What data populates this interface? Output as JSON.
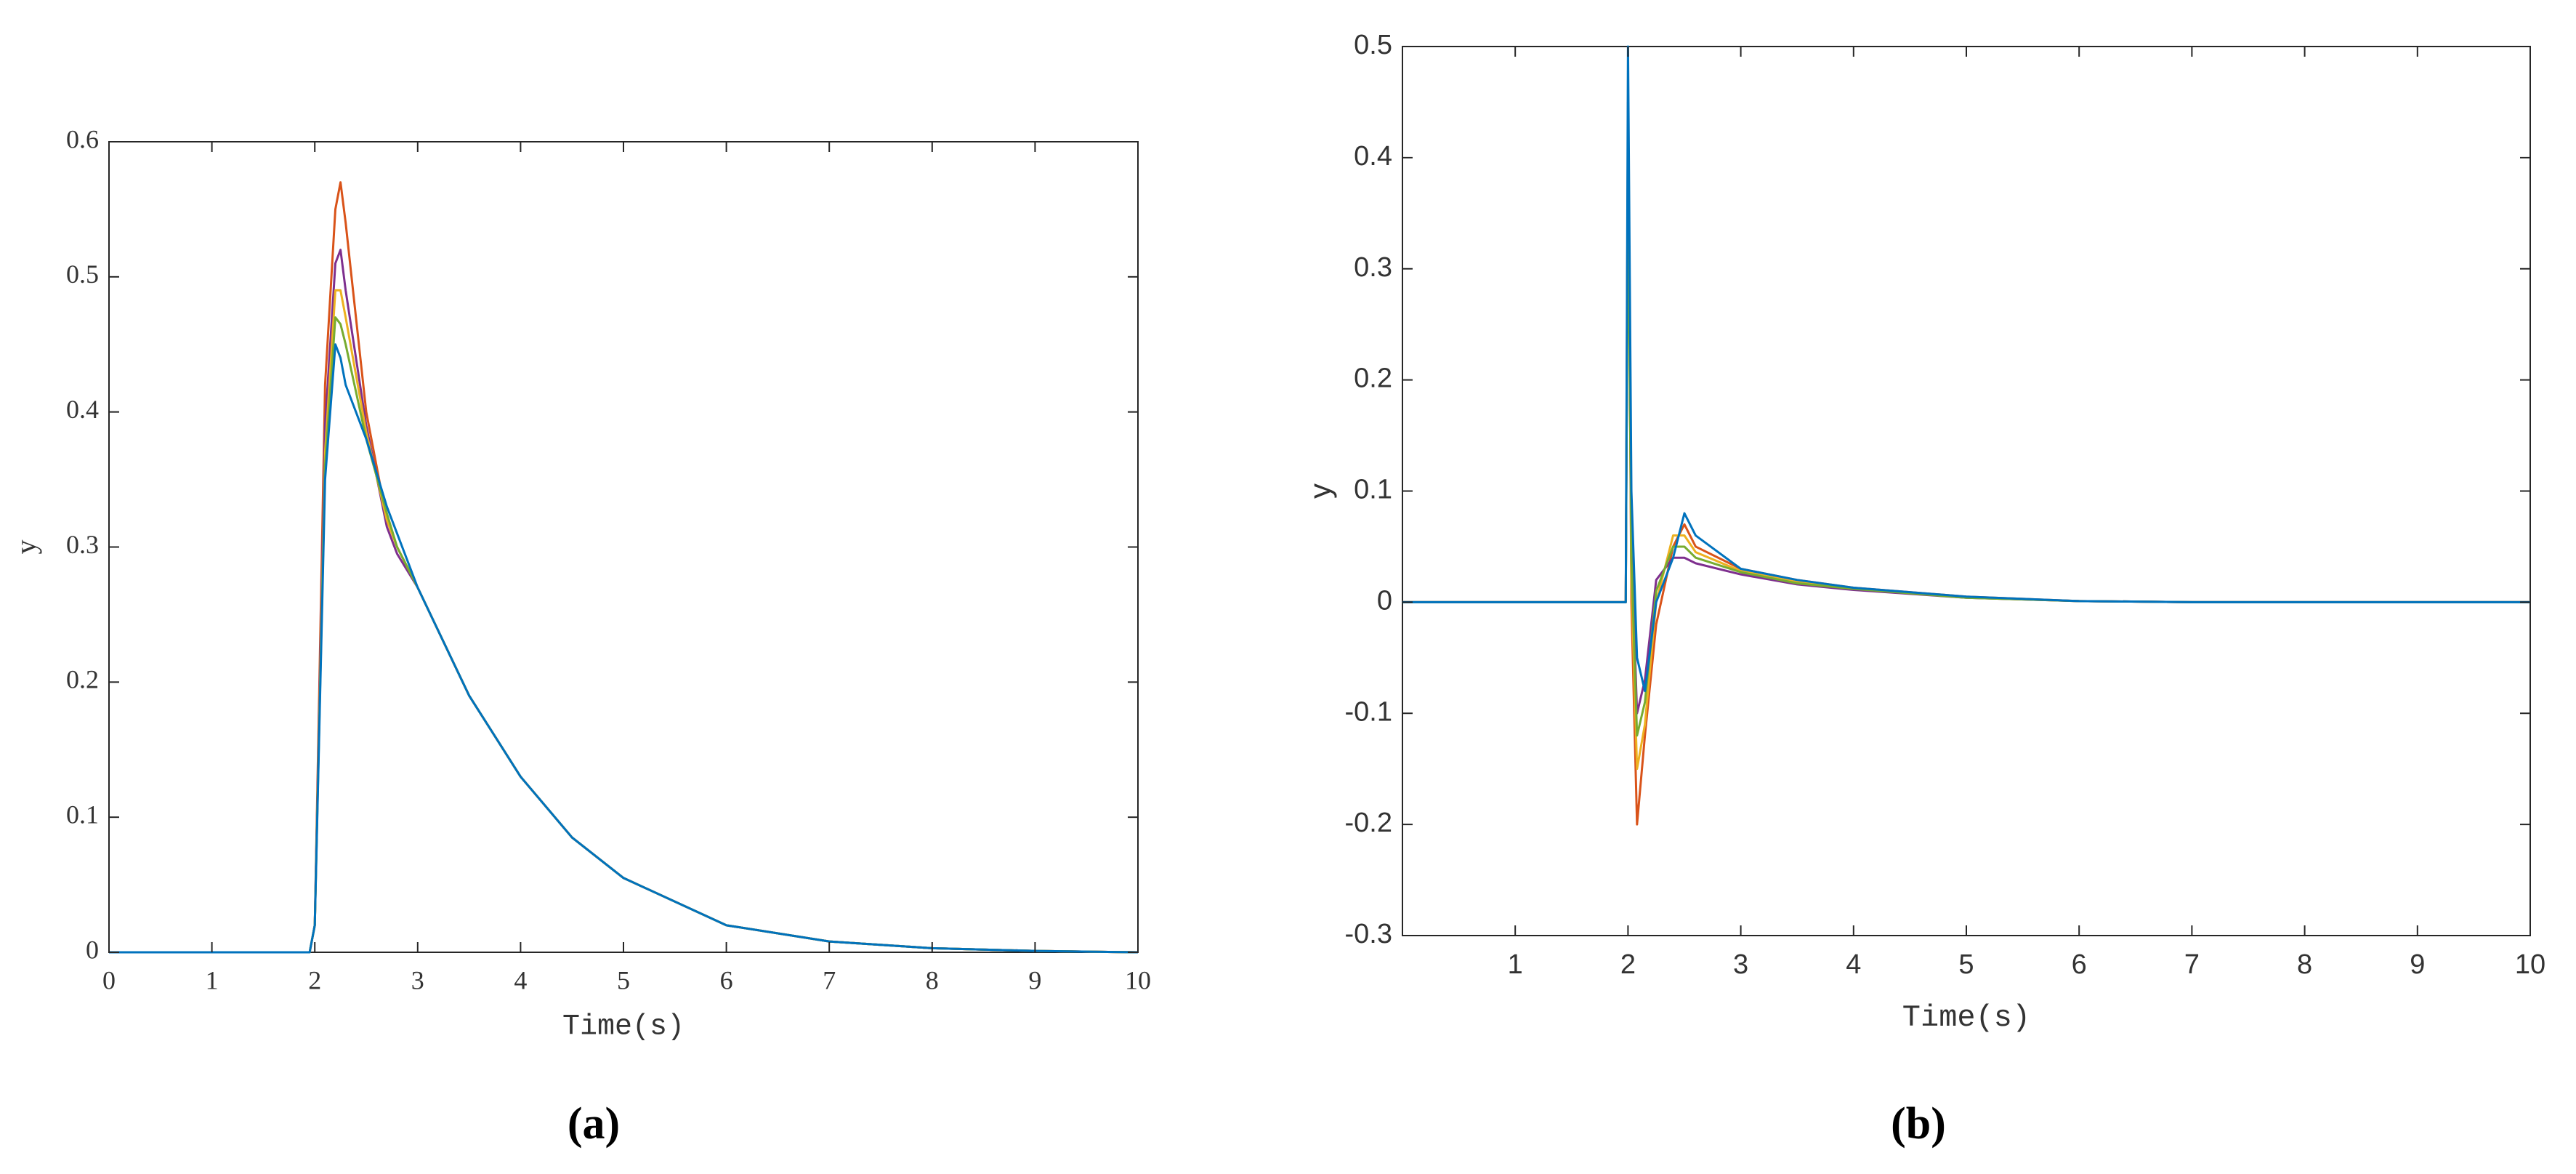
{
  "chart_data": [
    {
      "type": "line",
      "caption": "(a)",
      "xlabel": "Time(s)",
      "ylabel": "y",
      "xlim": [
        0,
        10
      ],
      "xticks": [
        0,
        1,
        2,
        3,
        4,
        5,
        6,
        7,
        8,
        9,
        10
      ],
      "ylim": [
        0,
        0.6
      ],
      "yticks": [
        0,
        0.1,
        0.2,
        0.3,
        0.4,
        0.5,
        0.6
      ],
      "x": [
        0,
        1,
        1.95,
        2.0,
        2.1,
        2.2,
        2.25,
        2.3,
        2.5,
        2.7,
        2.8,
        3,
        3.5,
        4,
        4.5,
        5,
        6,
        7,
        8,
        9,
        10
      ],
      "series": [
        {
          "color": "#D95319",
          "values": [
            0,
            0,
            0,
            0.02,
            0.42,
            0.55,
            0.57,
            0.54,
            0.4,
            0.32,
            0.3,
            0.27,
            0.19,
            0.13,
            0.085,
            0.055,
            0.02,
            0.008,
            0.003,
            0.001,
            0
          ]
        },
        {
          "color": "#7E2F8E",
          "values": [
            0,
            0,
            0,
            0.02,
            0.39,
            0.51,
            0.52,
            0.49,
            0.39,
            0.315,
            0.295,
            0.27,
            0.19,
            0.13,
            0.085,
            0.055,
            0.02,
            0.008,
            0.003,
            0.001,
            0
          ]
        },
        {
          "color": "#EDB120",
          "values": [
            0,
            0,
            0,
            0.02,
            0.37,
            0.49,
            0.49,
            0.47,
            0.385,
            0.32,
            0.3,
            0.27,
            0.19,
            0.13,
            0.085,
            0.055,
            0.02,
            0.008,
            0.003,
            0.001,
            0
          ]
        },
        {
          "color": "#77AC30",
          "values": [
            0,
            0,
            0,
            0.02,
            0.36,
            0.47,
            0.465,
            0.45,
            0.38,
            0.325,
            0.3,
            0.27,
            0.19,
            0.13,
            0.085,
            0.055,
            0.02,
            0.008,
            0.003,
            0.001,
            0
          ]
        },
        {
          "color": "#0072BD",
          "values": [
            0,
            0,
            0,
            0.02,
            0.35,
            0.45,
            0.44,
            0.42,
            0.38,
            0.33,
            0.31,
            0.27,
            0.19,
            0.13,
            0.085,
            0.055,
            0.02,
            0.008,
            0.003,
            0.001,
            0
          ]
        }
      ]
    },
    {
      "type": "line",
      "caption": "(b)",
      "xlabel": "Time(s)",
      "ylabel": "y",
      "xlim": [
        0,
        10
      ],
      "xticks": [
        1,
        2,
        3,
        4,
        5,
        6,
        7,
        8,
        9,
        10
      ],
      "ylim": [
        -0.3,
        0.5
      ],
      "yticks": [
        -0.3,
        -0.2,
        -0.1,
        0,
        0.1,
        0.2,
        0.3,
        0.4,
        0.5
      ],
      "x": [
        0,
        1.98,
        2.0,
        2.03,
        2.08,
        2.15,
        2.25,
        2.4,
        2.5,
        2.6,
        3,
        3.5,
        4,
        5,
        6,
        7,
        10
      ],
      "series": [
        {
          "color": "#D95319",
          "values": [
            0,
            0,
            0.45,
            0.0,
            -0.2,
            -0.12,
            -0.02,
            0.05,
            0.07,
            0.05,
            0.03,
            0.02,
            0.013,
            0.005,
            0.001,
            0,
            0
          ]
        },
        {
          "color": "#EDB120",
          "values": [
            0,
            0,
            0.42,
            0.02,
            -0.15,
            -0.11,
            0.0,
            0.06,
            0.06,
            0.045,
            0.028,
            0.018,
            0.012,
            0.004,
            0.001,
            0,
            0
          ]
        },
        {
          "color": "#7E2F8E",
          "values": [
            0,
            0,
            0.4,
            0.05,
            -0.1,
            -0.07,
            0.02,
            0.04,
            0.04,
            0.035,
            0.025,
            0.016,
            0.011,
            0.004,
            0.001,
            0,
            0
          ]
        },
        {
          "color": "#77AC30",
          "values": [
            0,
            0,
            0.38,
            0.04,
            -0.12,
            -0.09,
            0.01,
            0.05,
            0.05,
            0.04,
            0.027,
            0.017,
            0.012,
            0.004,
            0.001,
            0,
            0
          ]
        },
        {
          "color": "#0072BD",
          "values": [
            0,
            0,
            0.5,
            0.1,
            -0.05,
            -0.08,
            0.0,
            0.04,
            0.08,
            0.06,
            0.03,
            0.02,
            0.013,
            0.005,
            0.001,
            0,
            0
          ]
        }
      ]
    }
  ]
}
